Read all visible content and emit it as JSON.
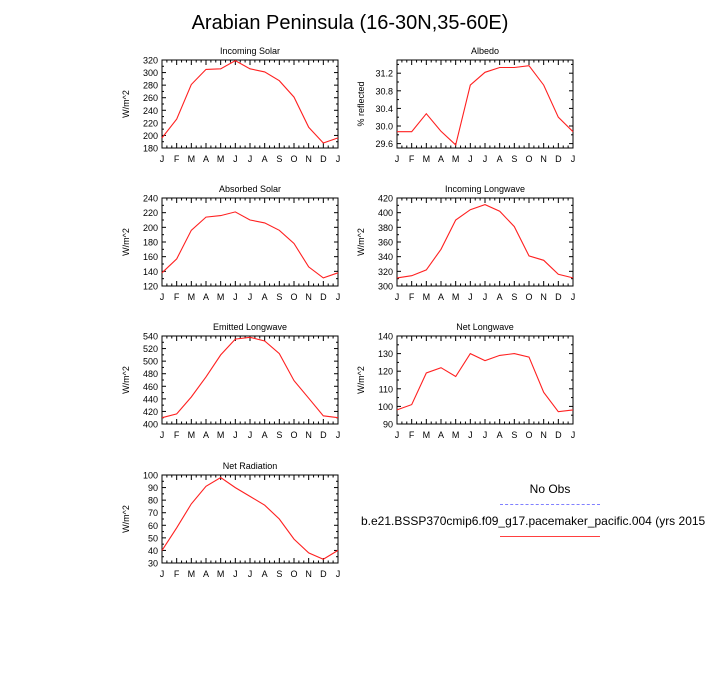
{
  "title": "Arabian Peninsula (16-30N,35-60E)",
  "legend": {
    "obs_label": "No Obs",
    "run_label": "b.e21.BSSP370cmip6.f09_g17.pacemaker_pacific.004 (yrs 2015",
    "obs_color": "#8080ff",
    "run_color": "#ff2020"
  },
  "chart_data": [
    {
      "type": "line",
      "title": "Incoming Solar",
      "ylabel": "W/m^2",
      "ylim": [
        180,
        320
      ],
      "yticks": [
        180,
        200,
        220,
        240,
        260,
        280,
        300,
        320
      ],
      "x": [
        "J",
        "F",
        "M",
        "A",
        "M",
        "J",
        "J",
        "A",
        "S",
        "O",
        "N",
        "D",
        "J"
      ],
      "series": [
        {
          "values": [
            196,
            226,
            281,
            305,
            306,
            319,
            306,
            301,
            287,
            261,
            213,
            188,
            196
          ]
        }
      ]
    },
    {
      "type": "line",
      "title": "Albedo",
      "ylabel": "% reflected",
      "ylim": [
        29.5,
        31.5
      ],
      "yticks": [
        29.6,
        30.0,
        30.4,
        30.8,
        31.2
      ],
      "x": [
        "J",
        "F",
        "M",
        "A",
        "M",
        "J",
        "J",
        "A",
        "S",
        "O",
        "N",
        "D",
        "J"
      ],
      "series": [
        {
          "values": [
            29.87,
            29.87,
            30.28,
            29.88,
            29.57,
            30.93,
            31.22,
            31.33,
            31.33,
            31.37,
            30.93,
            30.2,
            29.87
          ]
        }
      ]
    },
    {
      "type": "line",
      "title": "Absorbed Solar",
      "ylabel": "W/m^2",
      "ylim": [
        120,
        240
      ],
      "yticks": [
        120,
        140,
        160,
        180,
        200,
        220,
        240
      ],
      "x": [
        "J",
        "F",
        "M",
        "A",
        "M",
        "J",
        "J",
        "A",
        "S",
        "O",
        "N",
        "D",
        "J"
      ],
      "series": [
        {
          "values": [
            138,
            157,
            196,
            214,
            216,
            221,
            210,
            206,
            196,
            178,
            146,
            131,
            138
          ]
        }
      ]
    },
    {
      "type": "line",
      "title": "Incoming Longwave",
      "ylabel": "W/m^2",
      "ylim": [
        300,
        420
      ],
      "yticks": [
        300,
        320,
        340,
        360,
        380,
        400,
        420
      ],
      "x": [
        "J",
        "F",
        "M",
        "A",
        "M",
        "J",
        "J",
        "A",
        "S",
        "O",
        "N",
        "D",
        "J"
      ],
      "series": [
        {
          "values": [
            311,
            314,
            322,
            350,
            390,
            404,
            411,
            402,
            381,
            341,
            335,
            316,
            311
          ]
        }
      ]
    },
    {
      "type": "line",
      "title": "Emitted Longwave",
      "ylabel": "W/m^2",
      "ylim": [
        400,
        540
      ],
      "yticks": [
        400,
        420,
        440,
        460,
        480,
        500,
        520,
        540
      ],
      "x": [
        "J",
        "F",
        "M",
        "A",
        "M",
        "J",
        "J",
        "A",
        "S",
        "O",
        "N",
        "D",
        "J"
      ],
      "series": [
        {
          "values": [
            410,
            416,
            443,
            475,
            510,
            535,
            538,
            532,
            512,
            469,
            441,
            413,
            410
          ]
        }
      ]
    },
    {
      "type": "line",
      "title": "Net Longwave",
      "ylabel": "W/m^2",
      "ylim": [
        90,
        140
      ],
      "yticks": [
        90,
        100,
        110,
        120,
        130,
        140
      ],
      "x": [
        "J",
        "F",
        "M",
        "A",
        "M",
        "J",
        "J",
        "A",
        "S",
        "O",
        "N",
        "D",
        "J"
      ],
      "series": [
        {
          "values": [
            98,
            101,
            119,
            122,
            117,
            130,
            126,
            129,
            130,
            128,
            108,
            97,
            98
          ]
        }
      ]
    },
    {
      "type": "line",
      "title": "Net Radiation",
      "ylabel": "W/m^2",
      "ylim": [
        30,
        100
      ],
      "yticks": [
        30,
        40,
        50,
        60,
        70,
        80,
        90,
        100
      ],
      "x": [
        "J",
        "F",
        "M",
        "A",
        "M",
        "J",
        "J",
        "A",
        "S",
        "O",
        "N",
        "D",
        "J"
      ],
      "series": [
        {
          "values": [
            40,
            58,
            77,
            91,
            98,
            90,
            83,
            76,
            65,
            49,
            38,
            33,
            40
          ]
        }
      ]
    }
  ]
}
